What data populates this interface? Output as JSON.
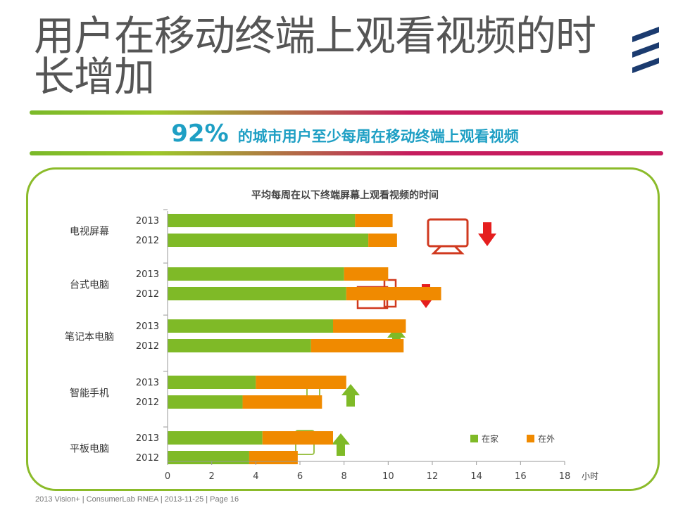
{
  "slide": {
    "title": "用户在移动终端上观看视频的时长增加",
    "headline_pct": "92%",
    "headline_text": "的城市用户至少每周在移动终端上观看视频",
    "footer": "2013 Vision+ | ConsumerLab RNEA | 2013-11-25 | Page 16"
  },
  "chart_data": {
    "type": "bar",
    "orientation": "horizontal",
    "stacked": true,
    "title": "平均每周在以下终端屏幕上观看视频的时间",
    "xunit": "小时",
    "xlim": [
      0,
      18
    ],
    "xticks": [
      "0",
      "2",
      "4",
      "6",
      "8",
      "10",
      "12",
      "14",
      "16",
      "18"
    ],
    "groups": [
      {
        "label": "电视屏幕",
        "icon": "tv-icon",
        "trend": "down",
        "bars": [
          {
            "year": "2013",
            "home": 8.5,
            "away": 1.7
          },
          {
            "year": "2012",
            "home": 9.1,
            "away": 1.3
          }
        ]
      },
      {
        "label": "台式电脑",
        "icon": "desktop-icon",
        "trend": "down",
        "bars": [
          {
            "year": "2013",
            "home": 8.0,
            "away": 2.0
          },
          {
            "year": "2012",
            "home": 8.1,
            "away": 4.3
          }
        ]
      },
      {
        "label": "笔记本电脑",
        "icon": "laptop-icon",
        "trend": "up",
        "bars": [
          {
            "year": "2013",
            "home": 7.5,
            "away": 3.3
          },
          {
            "year": "2012",
            "home": 6.5,
            "away": 4.2
          }
        ]
      },
      {
        "label": "智能手机",
        "icon": "smartphone-icon",
        "trend": "up",
        "bars": [
          {
            "year": "2013",
            "home": 4.0,
            "away": 4.1
          },
          {
            "year": "2012",
            "home": 3.4,
            "away": 3.6
          }
        ]
      },
      {
        "label": "平板电脑",
        "icon": "tablet-icon",
        "trend": "up",
        "bars": [
          {
            "year": "2013",
            "home": 4.3,
            "away": 3.2
          },
          {
            "year": "2012",
            "home": 3.7,
            "away": 2.2
          }
        ]
      }
    ],
    "series": [
      {
        "key": "home",
        "name": "在家",
        "color": "#7fba27"
      },
      {
        "key": "away",
        "name": "在外",
        "color": "#f08a00"
      }
    ],
    "legend_position": "bottom-right",
    "grid": false
  }
}
